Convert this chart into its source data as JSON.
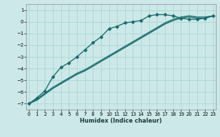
{
  "title": "",
  "xlabel": "Humidex (Indice chaleur)",
  "ylabel": "",
  "bg_color": "#cce8e8",
  "line_color": "#1a6b6b",
  "grid_color": "#aad4d4",
  "x_ticks": [
    0,
    1,
    2,
    3,
    4,
    5,
    6,
    7,
    8,
    9,
    10,
    11,
    12,
    13,
    14,
    15,
    16,
    17,
    18,
    19,
    20,
    21,
    22,
    23
  ],
  "y_ticks": [
    -7,
    -6,
    -5,
    -4,
    -3,
    -2,
    -1,
    0,
    1
  ],
  "xlim": [
    -0.3,
    23.3
  ],
  "ylim": [
    -7.5,
    1.5
  ],
  "figsize": [
    3.2,
    2.0
  ],
  "dpi": 100,
  "series": [
    {
      "x": [
        0,
        1,
        2,
        3,
        4,
        5,
        6,
        7,
        8,
        9,
        10,
        11,
        12,
        13,
        14,
        15,
        16,
        17,
        18,
        19,
        20,
        21,
        22,
        23
      ],
      "y": [
        -7.0,
        -6.5,
        -5.9,
        -4.7,
        -3.9,
        -3.5,
        -3.0,
        -2.4,
        -1.8,
        -1.3,
        -0.6,
        -0.4,
        -0.1,
        0.0,
        0.1,
        0.5,
        0.6,
        0.6,
        0.5,
        0.3,
        0.2,
        0.2,
        0.3,
        0.5
      ],
      "marker": "D",
      "markersize": 2.5,
      "linewidth": 1.0,
      "zorder": 3
    },
    {
      "x": [
        0,
        1,
        2,
        3,
        4,
        5,
        6,
        7,
        8,
        9,
        10,
        11,
        12,
        13,
        14,
        15,
        16,
        17,
        18,
        19,
        20,
        21,
        22,
        23
      ],
      "y": [
        -7.0,
        -6.7,
        -6.2,
        -5.7,
        -5.3,
        -4.9,
        -4.5,
        -4.2,
        -3.8,
        -3.4,
        -3.0,
        -2.6,
        -2.2,
        -1.8,
        -1.4,
        -1.0,
        -0.6,
        -0.2,
        0.1,
        0.3,
        0.4,
        0.3,
        0.3,
        0.5
      ],
      "marker": null,
      "markersize": 0,
      "linewidth": 1.0,
      "zorder": 2
    },
    {
      "x": [
        0,
        1,
        2,
        3,
        4,
        5,
        6,
        7,
        8,
        9,
        10,
        11,
        12,
        13,
        14,
        15,
        16,
        17,
        18,
        19,
        20,
        21,
        22,
        23
      ],
      "y": [
        -7.0,
        -6.6,
        -6.1,
        -5.6,
        -5.2,
        -4.8,
        -4.4,
        -4.1,
        -3.7,
        -3.3,
        -2.9,
        -2.5,
        -2.1,
        -1.7,
        -1.3,
        -0.9,
        -0.5,
        -0.1,
        0.2,
        0.4,
        0.5,
        0.4,
        0.4,
        0.5
      ],
      "marker": null,
      "markersize": 0,
      "linewidth": 1.0,
      "zorder": 2
    }
  ]
}
